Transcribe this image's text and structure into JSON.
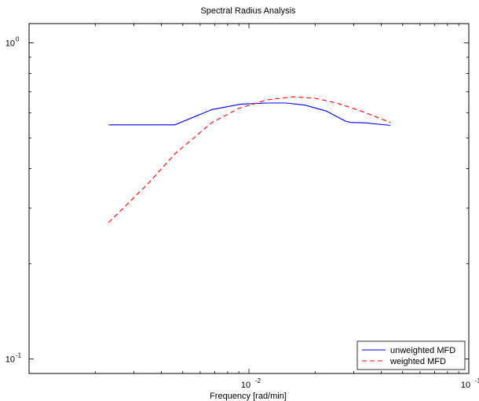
{
  "chart_data": {
    "type": "line",
    "title": "Spectral Radius Analysis",
    "xlabel": "Frequency [rad/min]",
    "ylabel": "",
    "xscale": "log",
    "yscale": "log",
    "xlim": [
      0.001,
      0.1
    ],
    "ylim": [
      0.09,
      1.15
    ],
    "xticks": [
      {
        "value": 0.01,
        "base": "10",
        "exp": "-2"
      },
      {
        "value": 0.1,
        "base": "10",
        "exp": "-1"
      }
    ],
    "yticks": [
      {
        "value": 0.1,
        "base": "10",
        "exp": "-1"
      },
      {
        "value": 1.0,
        "base": "10",
        "exp": "0"
      }
    ],
    "grid": false,
    "legend_position": "bottom-right",
    "series": [
      {
        "name": "unweighted MFD",
        "color": "#0000ff",
        "dash": "solid",
        "x": [
          0.0023,
          0.0046,
          0.0068,
          0.0092,
          0.0121,
          0.0148,
          0.018,
          0.0225,
          0.0275,
          0.029,
          0.034,
          0.044
        ],
        "y": [
          0.55,
          0.55,
          0.615,
          0.64,
          0.645,
          0.645,
          0.635,
          0.608,
          0.565,
          0.56,
          0.558,
          0.548
        ]
      },
      {
        "name": "weighted MFD",
        "color": "#ff0000",
        "dash": "dashed",
        "x": [
          0.0023,
          0.0035,
          0.0046,
          0.0068,
          0.009,
          0.0121,
          0.016,
          0.02,
          0.025,
          0.032,
          0.044
        ],
        "y": [
          0.27,
          0.36,
          0.445,
          0.56,
          0.62,
          0.66,
          0.675,
          0.668,
          0.645,
          0.61,
          0.56
        ]
      }
    ]
  }
}
